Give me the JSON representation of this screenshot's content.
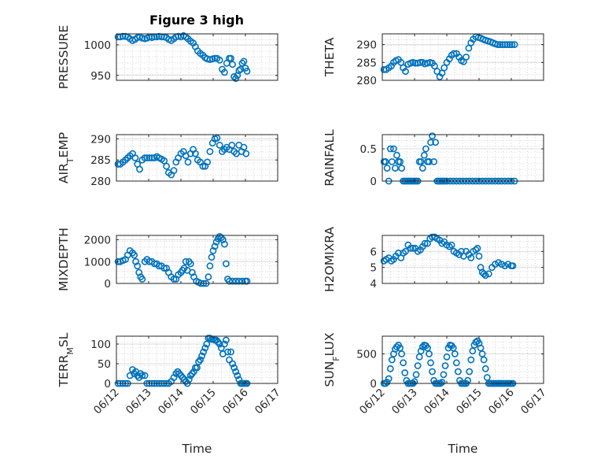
{
  "figure": {
    "title": "Figure 3 high",
    "marker_color": "#0072BD",
    "background": "#ffffff"
  },
  "chart_data": [
    {
      "type": "scatter",
      "ylabel": "PRESSURE",
      "yticks": [
        950,
        1000
      ],
      "ylim": [
        942,
        1018
      ],
      "xlim": [
        0,
        5
      ],
      "xticks": [],
      "grid": true,
      "x": [
        0.05,
        0.12,
        0.2,
        0.28,
        0.35,
        0.42,
        0.5,
        0.58,
        0.65,
        0.72,
        0.8,
        0.88,
        0.95,
        1.02,
        1.1,
        1.18,
        1.25,
        1.32,
        1.4,
        1.48,
        1.55,
        1.62,
        1.7,
        1.78,
        1.85,
        1.92,
        2.0,
        2.08,
        2.15,
        2.22,
        2.3,
        2.38,
        2.45,
        2.52,
        2.6,
        2.68,
        2.75,
        2.82,
        2.9,
        2.98,
        3.05,
        3.12,
        3.2,
        3.28,
        3.35,
        3.42,
        3.5,
        3.55,
        3.6,
        3.65,
        3.7,
        3.75,
        3.8,
        3.85,
        3.9,
        3.95,
        4.0,
        4.05
      ],
      "y": [
        1013,
        1013,
        1014,
        1014,
        1013,
        1010,
        1007,
        1009,
        1012,
        1013,
        1011,
        1010,
        1011,
        1013,
        1012,
        1013,
        1013,
        1014,
        1013,
        1013,
        1012,
        1009,
        1007,
        1010,
        1013,
        1014,
        1013,
        1015,
        1013,
        1010,
        1006,
        1003,
        997,
        990,
        986,
        983,
        979,
        977,
        976,
        977,
        978,
        978,
        975,
        960,
        955,
        970,
        978,
        978,
        968,
        948,
        945,
        950,
        958,
        960,
        970,
        973,
        962,
        957
      ]
    },
    {
      "type": "scatter",
      "ylabel": "THETA",
      "yticks": [
        280,
        285,
        290
      ],
      "ylim": [
        280,
        293
      ],
      "xlim": [
        0,
        5
      ],
      "xticks": [],
      "grid": true,
      "x": [
        0.05,
        0.12,
        0.2,
        0.28,
        0.35,
        0.42,
        0.5,
        0.58,
        0.65,
        0.72,
        0.8,
        0.88,
        0.95,
        1.02,
        1.1,
        1.18,
        1.25,
        1.32,
        1.4,
        1.48,
        1.55,
        1.62,
        1.7,
        1.78,
        1.85,
        1.92,
        2.0,
        2.08,
        2.15,
        2.22,
        2.3,
        2.38,
        2.45,
        2.52,
        2.6,
        2.68,
        2.75,
        2.82,
        2.9,
        2.98,
        3.05,
        3.12,
        3.2,
        3.28,
        3.35,
        3.42,
        3.5,
        3.58,
        3.65,
        3.72,
        3.8,
        3.88,
        3.95,
        4.02,
        4.1
      ],
      "y": [
        283,
        283,
        283.5,
        284,
        285,
        285.5,
        285.8,
        285,
        283.5,
        282.5,
        284.5,
        284.8,
        285,
        284.8,
        284.8,
        285,
        285,
        284.6,
        284.8,
        285,
        284.8,
        284,
        282.5,
        281,
        282,
        283.5,
        285,
        286,
        287,
        287.5,
        287.5,
        286.5,
        285.5,
        285.2,
        286.5,
        289,
        290.5,
        291.5,
        292.2,
        292,
        291.8,
        291.5,
        291.2,
        291,
        290.8,
        290.5,
        290.2,
        290,
        290,
        290,
        290,
        290,
        290,
        290,
        290
      ]
    },
    {
      "type": "scatter",
      "ylabel": "AIR_TEMP",
      "ylabel_main": "AIR",
      "ylabel_sub": "T",
      "ylabel_rest": "EMP",
      "yticks": [
        280,
        285,
        290
      ],
      "ylim": [
        280,
        291
      ],
      "xlim": [
        0,
        5
      ],
      "xticks": [],
      "grid": true,
      "x": [
        0.05,
        0.12,
        0.2,
        0.28,
        0.35,
        0.42,
        0.5,
        0.58,
        0.65,
        0.72,
        0.8,
        0.88,
        0.95,
        1.02,
        1.1,
        1.18,
        1.25,
        1.32,
        1.4,
        1.48,
        1.55,
        1.62,
        1.7,
        1.78,
        1.85,
        1.92,
        2.0,
        2.08,
        2.15,
        2.22,
        2.3,
        2.38,
        2.45,
        2.52,
        2.6,
        2.68,
        2.75,
        2.82,
        2.9,
        2.98,
        3.05,
        3.12,
        3.2,
        3.28,
        3.35,
        3.42,
        3.5,
        3.58,
        3.65,
        3.72,
        3.8,
        3.88,
        3.95,
        4.02
      ],
      "y": [
        284,
        284,
        284.5,
        285,
        285.5,
        286,
        286.5,
        285.5,
        284,
        282.8,
        285,
        285.5,
        285.5,
        285.5,
        285.5,
        285.5,
        285.8,
        285.5,
        285.2,
        284.8,
        283.5,
        282,
        281.5,
        282.5,
        284.5,
        285.5,
        286.5,
        287,
        286,
        284.5,
        286.5,
        287.5,
        286.5,
        285,
        284.5,
        283.5,
        283.5,
        284.5,
        287,
        289,
        290,
        290.2,
        288.5,
        287,
        287.5,
        288,
        287.5,
        288.5,
        287,
        286.5,
        288.5,
        287,
        288,
        286.5
      ]
    },
    {
      "type": "scatter",
      "ylabel": "RAINFALL",
      "yticks": [
        0,
        0.5
      ],
      "ylim": [
        0,
        0.72
      ],
      "xlim": [
        0,
        5
      ],
      "xticks": [],
      "grid": true,
      "x": [
        0.05,
        0.1,
        0.15,
        0.2,
        0.25,
        0.3,
        0.35,
        0.4,
        0.45,
        0.5,
        0.55,
        0.6,
        0.65,
        0.7,
        0.75,
        0.8,
        0.85,
        0.9,
        0.95,
        1.0,
        1.05,
        1.1,
        1.15,
        1.2,
        1.25,
        1.3,
        1.35,
        1.4,
        1.45,
        1.5,
        1.55,
        1.6,
        1.65,
        1.7,
        1.75,
        1.8,
        1.85,
        1.9,
        1.95,
        2.0,
        2.1,
        2.2,
        2.3,
        2.4,
        2.5,
        2.6,
        2.7,
        2.8,
        2.9,
        3.0,
        3.1,
        3.2,
        3.3,
        3.4,
        3.5,
        3.6,
        3.7,
        3.8,
        3.9,
        4.0,
        4.1
      ],
      "y": [
        0.3,
        0.3,
        0.2,
        0,
        0.5,
        0.3,
        0.5,
        0.2,
        0.4,
        0.3,
        0.3,
        0.2,
        0,
        0,
        0,
        0,
        0,
        0,
        0,
        0,
        0,
        0,
        0.3,
        0.3,
        0.2,
        0.4,
        0.5,
        0.3,
        0.3,
        0.6,
        0.7,
        0.3,
        0.6,
        0,
        0,
        0,
        0,
        0,
        0,
        0,
        0,
        0,
        0,
        0,
        0,
        0,
        0,
        0,
        0,
        0,
        0,
        0,
        0,
        0,
        0,
        0,
        0,
        0,
        0,
        0,
        0
      ]
    },
    {
      "type": "scatter",
      "ylabel": "MIXDEPTH",
      "yticks": [
        0,
        1000,
        2000
      ],
      "ylim": [
        0,
        2200
      ],
      "xlim": [
        0,
        5
      ],
      "xticks": [],
      "grid": true,
      "x": [
        0.05,
        0.12,
        0.2,
        0.28,
        0.35,
        0.42,
        0.5,
        0.55,
        0.6,
        0.65,
        0.7,
        0.75,
        0.8,
        0.88,
        0.95,
        1.02,
        1.1,
        1.18,
        1.25,
        1.32,
        1.4,
        1.48,
        1.55,
        1.62,
        1.7,
        1.78,
        1.85,
        1.92,
        2.0,
        2.05,
        2.1,
        2.15,
        2.2,
        2.25,
        2.3,
        2.35,
        2.4,
        2.48,
        2.55,
        2.62,
        2.7,
        2.78,
        2.85,
        2.9,
        2.95,
        3.0,
        3.05,
        3.1,
        3.15,
        3.2,
        3.25,
        3.3,
        3.35,
        3.4,
        3.45,
        3.5,
        3.6,
        3.7,
        3.8,
        3.9,
        4.0,
        4.05
      ],
      "y": [
        1000,
        1000,
        1050,
        1100,
        1300,
        1500,
        1400,
        1300,
        1000,
        800,
        500,
        300,
        200,
        1000,
        1100,
        1000,
        1000,
        900,
        900,
        800,
        800,
        700,
        700,
        500,
        300,
        200,
        200,
        400,
        500,
        600,
        700,
        1000,
        600,
        1000,
        900,
        500,
        300,
        100,
        50,
        0,
        0,
        0,
        300,
        800,
        1200,
        1500,
        1700,
        1900,
        2050,
        2150,
        2100,
        2000,
        1800,
        900,
        200,
        100,
        100,
        100,
        100,
        100,
        100,
        100
      ]
    },
    {
      "type": "scatter",
      "ylabel": "H2OMIXRA",
      "yticks": [
        4,
        5,
        6
      ],
      "ylim": [
        4,
        7
      ],
      "xlim": [
        0,
        5
      ],
      "xticks": [],
      "grid": true,
      "x": [
        0.05,
        0.12,
        0.2,
        0.28,
        0.35,
        0.42,
        0.5,
        0.58,
        0.65,
        0.72,
        0.8,
        0.88,
        0.95,
        1.02,
        1.1,
        1.18,
        1.25,
        1.32,
        1.4,
        1.48,
        1.55,
        1.62,
        1.7,
        1.78,
        1.85,
        1.92,
        2.0,
        2.08,
        2.15,
        2.22,
        2.3,
        2.38,
        2.45,
        2.52,
        2.6,
        2.68,
        2.75,
        2.82,
        2.9,
        2.95,
        3.0,
        3.05,
        3.1,
        3.15,
        3.2,
        3.3,
        3.4,
        3.5,
        3.6,
        3.7,
        3.8,
        3.9,
        4.0,
        4.05
      ],
      "y": [
        5.4,
        5.5,
        5.6,
        5.4,
        5.5,
        5.7,
        5.9,
        5.6,
        5.9,
        6.0,
        6.4,
        6.2,
        6.2,
        6.2,
        6.0,
        6.1,
        6.3,
        6.5,
        6.5,
        6.8,
        6.9,
        6.9,
        6.8,
        6.7,
        6.5,
        6.6,
        6.4,
        6.3,
        6.4,
        6.0,
        5.9,
        5.8,
        6.0,
        5.7,
        6.0,
        5.8,
        5.6,
        6.0,
        6.1,
        6.2,
        5.7,
        5.0,
        4.7,
        4.6,
        4.5,
        4.6,
        5.0,
        5.2,
        5.3,
        5.2,
        5.1,
        5.2,
        5.1,
        5.1
      ]
    },
    {
      "type": "scatter",
      "ylabel": "TERR_MSL",
      "ylabel_main": "TERR",
      "ylabel_sub": "M",
      "ylabel_rest": "SL",
      "yticks": [
        0,
        50,
        100
      ],
      "ylim": [
        0,
        120
      ],
      "xlim": [
        0,
        5
      ],
      "xticks": [
        "06/12",
        "06/13",
        "06/14",
        "06/15",
        "06/16",
        "06/17"
      ],
      "xlabel": "Time",
      "grid": true,
      "x": [
        0.05,
        0.12,
        0.2,
        0.28,
        0.35,
        0.42,
        0.5,
        0.55,
        0.6,
        0.65,
        0.7,
        0.75,
        0.8,
        0.88,
        0.95,
        1.02,
        1.1,
        1.18,
        1.25,
        1.32,
        1.4,
        1.48,
        1.55,
        1.62,
        1.7,
        1.78,
        1.85,
        1.9,
        1.95,
        2.0,
        2.05,
        2.1,
        2.15,
        2.2,
        2.25,
        2.3,
        2.35,
        2.4,
        2.45,
        2.5,
        2.55,
        2.6,
        2.65,
        2.7,
        2.75,
        2.8,
        2.85,
        2.9,
        2.95,
        3.0,
        3.05,
        3.1,
        3.15,
        3.2,
        3.25,
        3.3,
        3.35,
        3.4,
        3.45,
        3.5,
        3.55,
        3.6,
        3.65,
        3.7,
        3.75,
        3.8,
        3.85,
        3.9,
        3.95,
        4.0,
        4.05
      ],
      "y": [
        0,
        0,
        0,
        0,
        0,
        20,
        35,
        25,
        30,
        20,
        15,
        25,
        20,
        20,
        0,
        0,
        0,
        0,
        0,
        0,
        0,
        0,
        0,
        0,
        5,
        15,
        25,
        30,
        25,
        20,
        15,
        10,
        5,
        0,
        10,
        20,
        25,
        30,
        40,
        40,
        55,
        60,
        70,
        80,
        90,
        100,
        115,
        115,
        112,
        112,
        110,
        110,
        105,
        100,
        90,
        75,
        100,
        110,
        80,
        60,
        80,
        50,
        40,
        30,
        20,
        10,
        0,
        0,
        0,
        0,
        0
      ]
    },
    {
      "type": "scatter",
      "ylabel": "SUN_FLUX",
      "ylabel_main": "SUN",
      "ylabel_sub": "F",
      "ylabel_rest": "LUX",
      "yticks": [
        0,
        500
      ],
      "ylim": [
        0,
        800
      ],
      "xlim": [
        0,
        5
      ],
      "xticks": [
        "06/12",
        "06/13",
        "06/14",
        "06/15",
        "06/16",
        "06/17"
      ],
      "xlabel": "Time",
      "grid": true,
      "x": [
        0.05,
        0.1,
        0.15,
        0.2,
        0.25,
        0.3,
        0.35,
        0.4,
        0.45,
        0.5,
        0.55,
        0.6,
        0.65,
        0.7,
        0.75,
        0.8,
        0.85,
        0.9,
        0.95,
        1.0,
        1.05,
        1.1,
        1.15,
        1.2,
        1.25,
        1.3,
        1.35,
        1.4,
        1.45,
        1.5,
        1.55,
        1.6,
        1.65,
        1.7,
        1.75,
        1.8,
        1.85,
        1.9,
        1.95,
        2.0,
        2.05,
        2.1,
        2.15,
        2.2,
        2.25,
        2.3,
        2.35,
        2.4,
        2.45,
        2.5,
        2.55,
        2.6,
        2.65,
        2.7,
        2.75,
        2.8,
        2.85,
        2.9,
        2.95,
        3.0,
        3.05,
        3.1,
        3.15,
        3.2,
        3.25,
        3.3,
        3.35,
        3.4,
        3.45,
        3.5,
        3.55,
        3.6,
        3.65,
        3.7,
        3.75,
        3.8,
        3.85,
        3.9,
        3.95,
        4.0,
        4.05
      ],
      "y": [
        0,
        0,
        20,
        80,
        250,
        400,
        500,
        580,
        620,
        650,
        600,
        500,
        350,
        180,
        50,
        0,
        0,
        0,
        0,
        30,
        150,
        300,
        450,
        550,
        620,
        650,
        640,
        600,
        500,
        350,
        200,
        50,
        0,
        0,
        0,
        0,
        20,
        150,
        300,
        450,
        600,
        650,
        640,
        600,
        500,
        350,
        200,
        50,
        0,
        0,
        0,
        0,
        50,
        200,
        400,
        550,
        650,
        700,
        720,
        680,
        600,
        500,
        400,
        250,
        100,
        0,
        0,
        0,
        0,
        0,
        0,
        0,
        0,
        0,
        0,
        0,
        0,
        0,
        0,
        0,
        0
      ]
    }
  ]
}
